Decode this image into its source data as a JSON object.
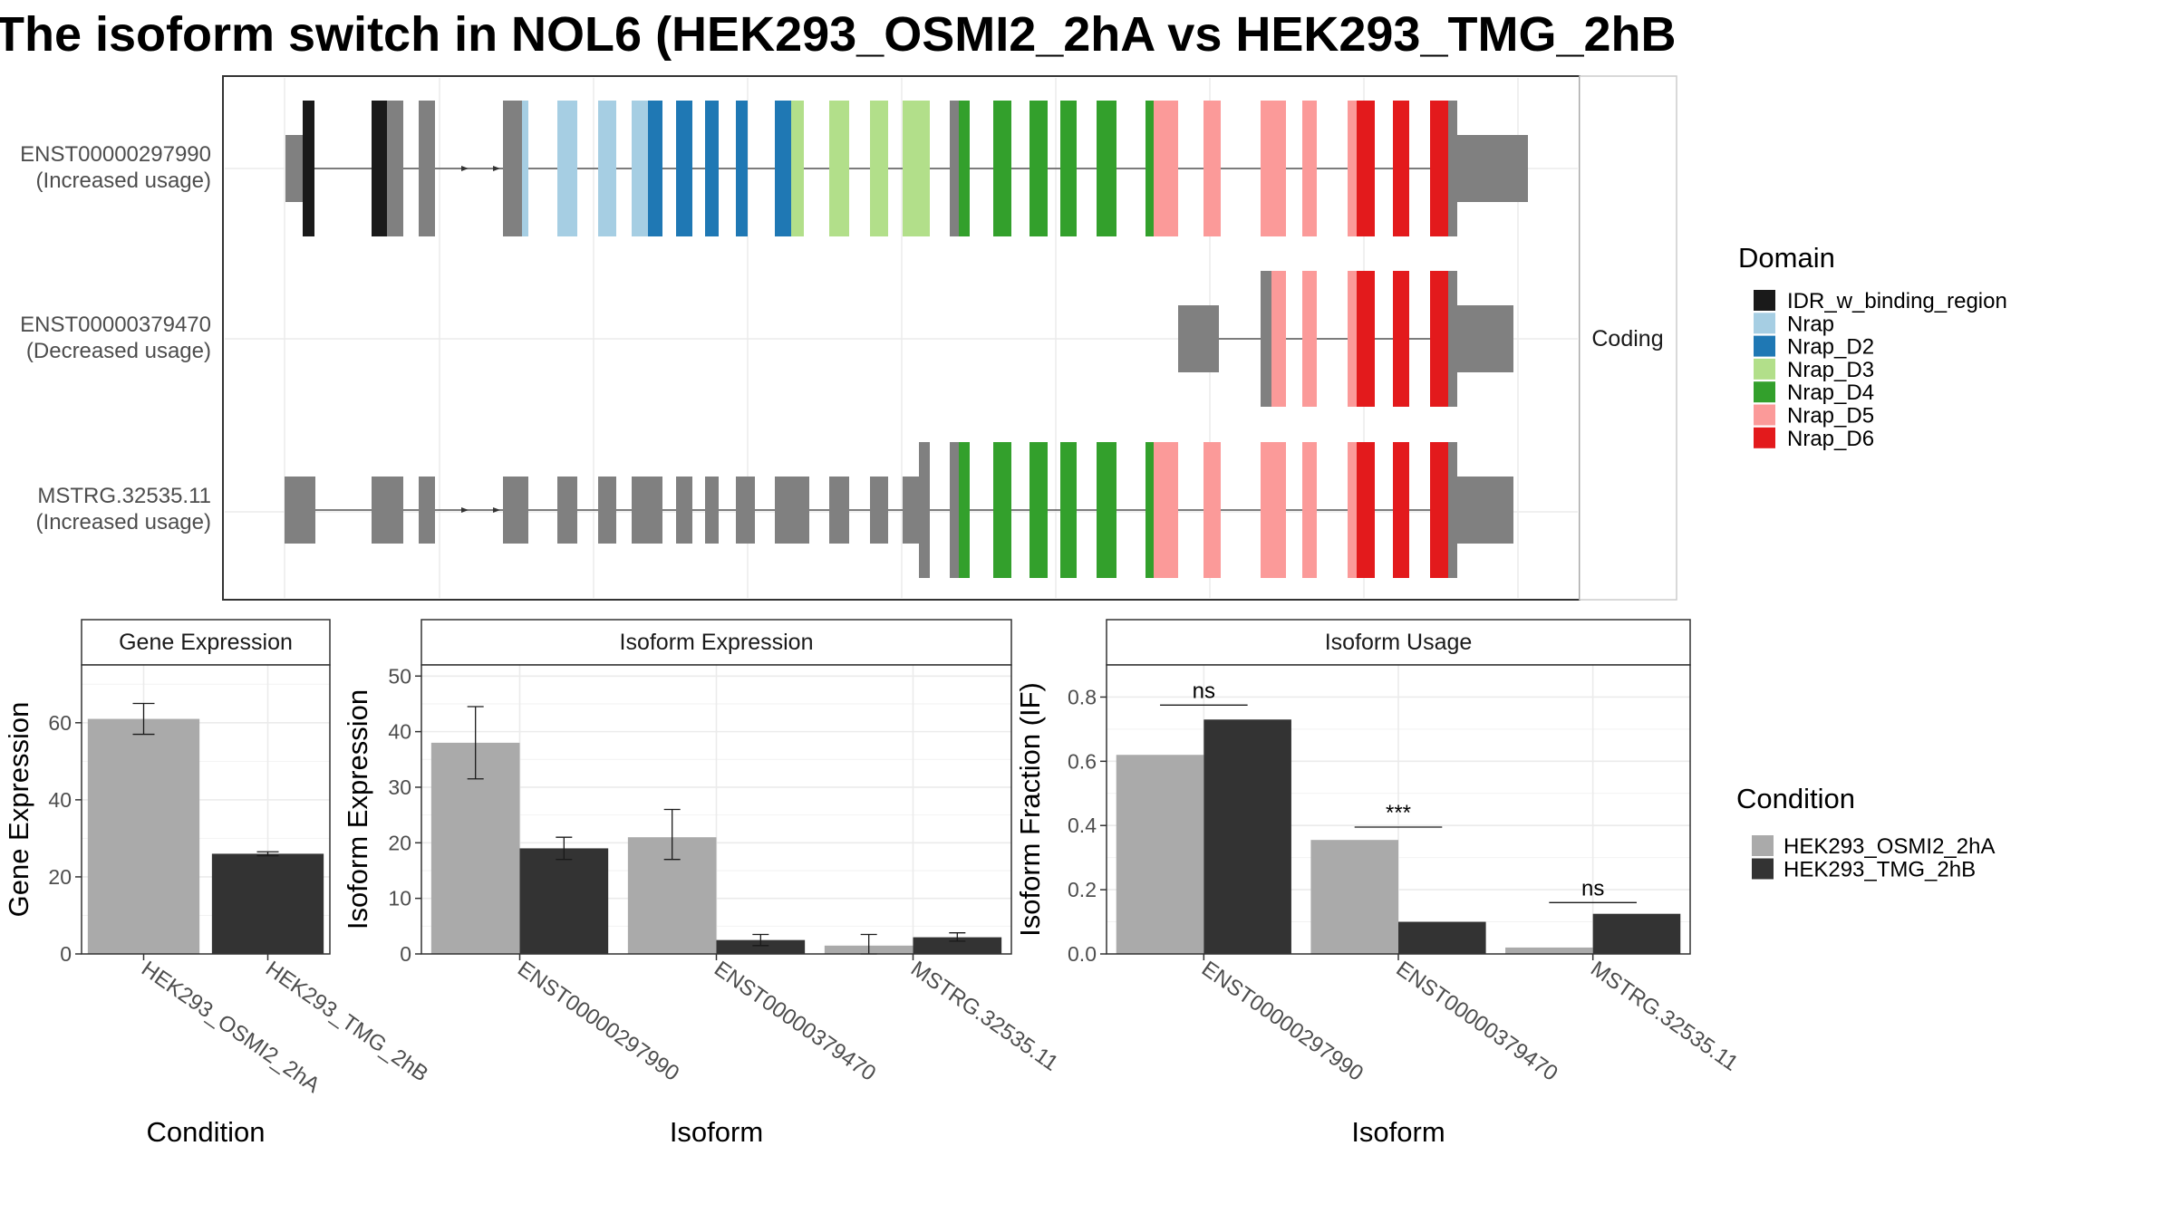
{
  "title": "The isoform switch in NOL6 (HEK293_OSMI2_2hA vs HEK293_TMG_2hB",
  "colors": {
    "intron": "#555555",
    "noncoding_exon": "#808080",
    "panel_border": "#333333",
    "grid": "#ebebeb",
    "cond_A": "#aaaaaa",
    "cond_B": "#333333"
  },
  "structure_panel": {
    "facet_label": "Coding",
    "isoforms": [
      {
        "id": "ENST00000297990",
        "status": "(Increased usage)"
      },
      {
        "id": "ENST00000379470",
        "status": "(Decreased usage)"
      },
      {
        "id": "MSTRG.32535.11",
        "status": "(Increased usage)"
      }
    ]
  },
  "domain_legend": {
    "title": "Domain",
    "items": [
      {
        "label": "IDR_w_binding_region",
        "color": "#1a1a1a"
      },
      {
        "label": "Nrap",
        "color": "#a6cee3"
      },
      {
        "label": "Nrap_D2",
        "color": "#1f78b4"
      },
      {
        "label": "Nrap_D3",
        "color": "#b2df8a"
      },
      {
        "label": "Nrap_D4",
        "color": "#33a02c"
      },
      {
        "label": "Nrap_D5",
        "color": "#fb9a99"
      },
      {
        "label": "Nrap_D6",
        "color": "#e31a1c"
      }
    ]
  },
  "condition_legend": {
    "title": "Condition",
    "items": [
      {
        "label": "HEK293_OSMI2_2hA",
        "color": "#aaaaaa"
      },
      {
        "label": "HEK293_TMG_2hB",
        "color": "#333333"
      }
    ]
  },
  "chart_data": [
    {
      "type": "bar",
      "title": "Gene Expression",
      "xlabel": "Condition",
      "ylabel": "Gene Expression",
      "ylim": [
        0,
        75
      ],
      "yticks": [
        0,
        20,
        40,
        60
      ],
      "categories": [
        "HEK293_OSMI2_2hA",
        "HEK293_TMG_2hB"
      ],
      "values": [
        61,
        26
      ],
      "errors": [
        [
          57,
          65
        ],
        [
          25.5,
          26.5
        ]
      ],
      "colors": [
        "#aaaaaa",
        "#333333"
      ]
    },
    {
      "type": "bar",
      "title": "Isoform Expression",
      "xlabel": "Isoform",
      "ylabel": "Isoform Expression",
      "ylim": [
        0,
        52
      ],
      "yticks": [
        0,
        10,
        20,
        30,
        40,
        50
      ],
      "categories": [
        "ENST00000297990",
        "ENST00000379470",
        "MSTRG.32535.11"
      ],
      "series": [
        {
          "name": "HEK293_OSMI2_2hA",
          "values": [
            38,
            21,
            1.5
          ],
          "errors": [
            [
              31.5,
              44.5
            ],
            [
              17,
              26
            ],
            [
              0,
              3.5
            ]
          ]
        },
        {
          "name": "HEK293_TMG_2hB",
          "values": [
            19,
            2.5,
            3
          ],
          "errors": [
            [
              17,
              21
            ],
            [
              1.5,
              3.5
            ],
            [
              2.3,
              3.8
            ]
          ]
        }
      ]
    },
    {
      "type": "bar",
      "title": "Isoform Usage",
      "xlabel": "Isoform",
      "ylabel": "Isoform Fraction (IF)",
      "ylim": [
        0,
        0.9
      ],
      "yticks": [
        0.0,
        0.2,
        0.4,
        0.6,
        0.8
      ],
      "categories": [
        "ENST00000297990",
        "ENST00000379470",
        "MSTRG.32535.11"
      ],
      "series": [
        {
          "name": "HEK293_OSMI2_2hA",
          "values": [
            0.62,
            0.355,
            0.02
          ]
        },
        {
          "name": "HEK293_TMG_2hB",
          "values": [
            0.73,
            0.1,
            0.125
          ]
        }
      ],
      "significance": [
        {
          "category": "ENST00000297990",
          "label": "ns",
          "y": 0.775
        },
        {
          "category": "ENST00000379470",
          "label": "***",
          "y": 0.395
        },
        {
          "category": "MSTRG.32535.11",
          "label": "ns",
          "y": 0.16
        }
      ]
    }
  ]
}
